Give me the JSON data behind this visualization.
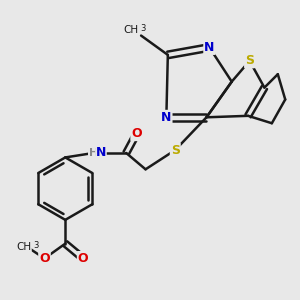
{
  "bg_color": "#e8e8e8",
  "bond_color": "#1a1a1a",
  "bond_width": 1.8,
  "atom_colors": {
    "N": "#0000cc",
    "S": "#bbaa00",
    "O": "#dd0000",
    "C": "#1a1a1a"
  },
  "figsize": [
    3.0,
    3.0
  ],
  "dpi": 100,
  "xlim": [
    0,
    10
  ],
  "ylim": [
    0,
    10
  ]
}
